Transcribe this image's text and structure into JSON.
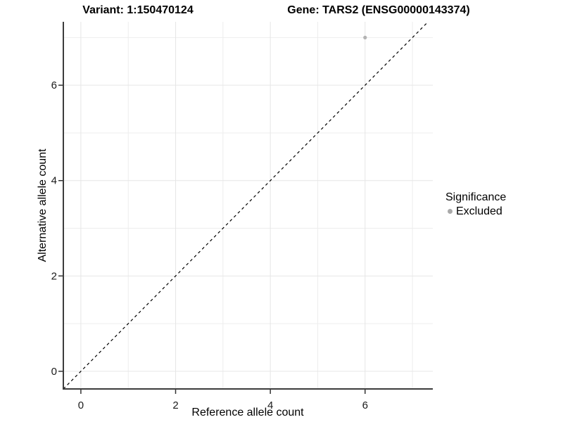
{
  "chart_data": {
    "type": "scatter",
    "titles": {
      "variant": "Variant: 1:150470124",
      "gene": "Gene: TARS2 (ENSG00000143374)"
    },
    "xlabel": "Reference allele count",
    "ylabel": "Alternative allele count",
    "xlim": [
      -0.37,
      7.43
    ],
    "ylim": [
      -0.37,
      7.33
    ],
    "x_ticks": [
      0,
      2,
      4,
      6
    ],
    "y_ticks": [
      0,
      2,
      4,
      6
    ],
    "x_minor_ticks": [
      1,
      3,
      5,
      7
    ],
    "y_minor_ticks": [
      1,
      3,
      5,
      7
    ],
    "grid": true,
    "series": [
      {
        "name": "Excluded",
        "color": "#b3b3b3",
        "points": [
          {
            "x": 6,
            "y": 7
          }
        ]
      }
    ],
    "reference_line": {
      "kind": "identity",
      "style": "dashed",
      "color": "#000000"
    },
    "legend": {
      "position": "right",
      "title": "Significance",
      "items": [
        {
          "label": "Excluded",
          "color": "#a9a9a9"
        }
      ]
    },
    "colors": {
      "background": "#ffffff",
      "grid_major": "#e6e6e6",
      "grid_minor": "#ededed",
      "axis_line": "#3c3c3c",
      "tick_mark": "#333333",
      "tick_label": "#1a1a1a"
    }
  }
}
